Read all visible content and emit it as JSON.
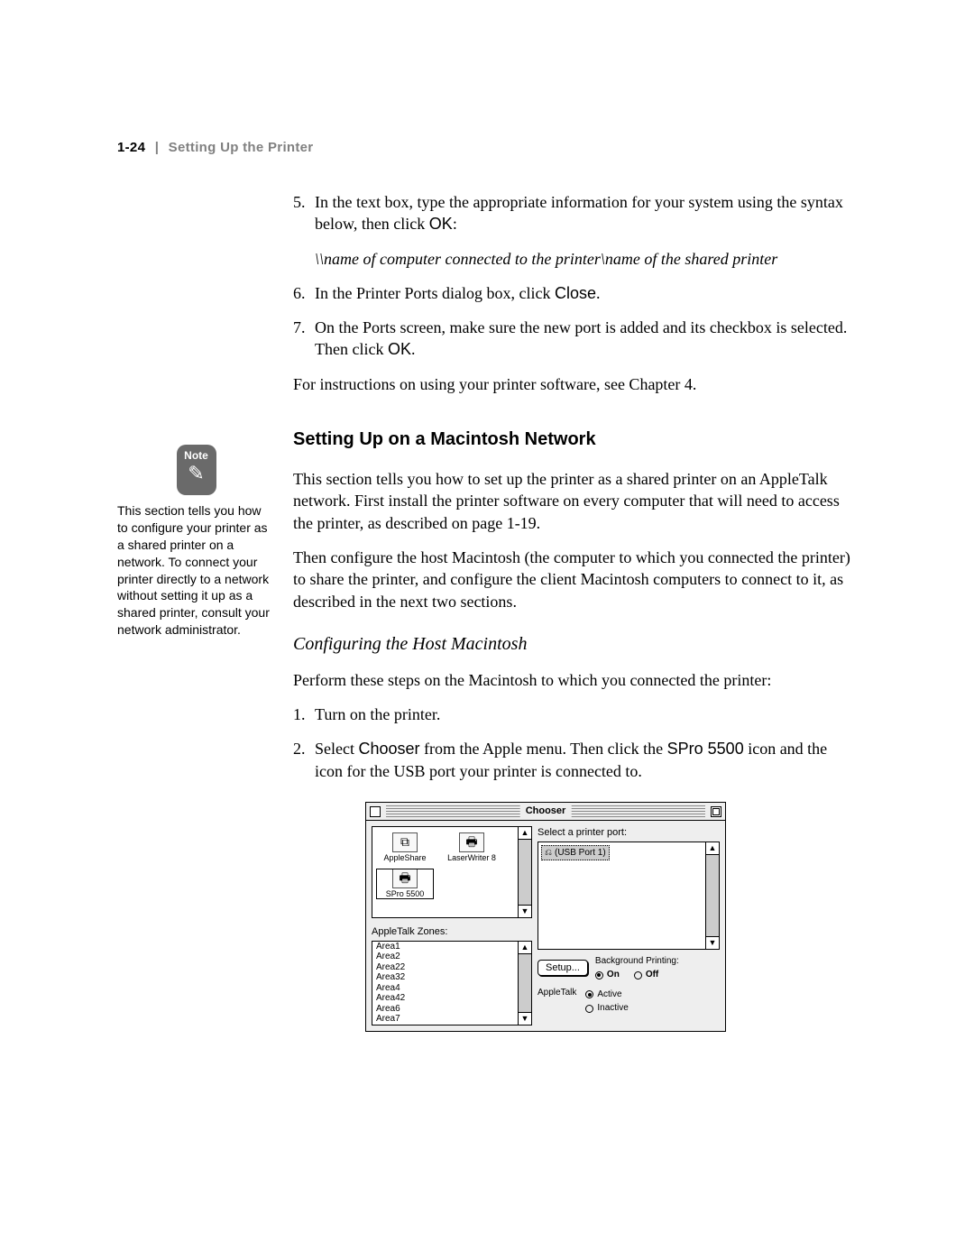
{
  "colors": {
    "page_bg": "#ffffff",
    "text": "#000000",
    "header_gray": "#808080",
    "note_badge_bg": "#6a6a6a",
    "chooser_bg": "#eeeeee",
    "scroll_track": "#cccccc"
  },
  "typography": {
    "body_family": "Times New Roman",
    "body_size_pt": 13,
    "sans_family": "Arial",
    "heading_size_pt": 15,
    "sidebar_size_pt": 10.5,
    "chooser_font": "Geneva",
    "chooser_size_pt": 8
  },
  "header": {
    "page_number": "1-24",
    "separator": "|",
    "chapter_title": "Setting Up the Printer"
  },
  "steps_a": [
    {
      "n": "5.",
      "text_before": "In the text box, type the appropriate information for your system using the syntax below, then click ",
      "sans": "OK",
      "text_after": ":"
    },
    {
      "n": "6.",
      "text_before": "In the Printer Ports dialog box, click ",
      "sans": "Close",
      "text_after": "."
    },
    {
      "n": "7.",
      "text_before": "On the Ports screen, make sure the new port is added and its checkbox is selected. Then click ",
      "sans": "OK",
      "text_after": "."
    }
  ],
  "syntax_line": "\\\\name of computer connected to the printer\\name of the shared printer",
  "para_after_steps_a": "For instructions on using your printer software, see Chapter 4.",
  "section_heading": "Setting Up on a Macintosh Network",
  "section_para_1": "This section tells you how to set up the printer as a shared printer on an AppleTalk network. First install the printer software on every computer that will need to access the printer, as described on page 1-19.",
  "section_para_2": "Then configure the host Macintosh (the computer to which you connected the printer) to share the printer, and configure the client Macintosh computers to connect to it, as described in the next two sections.",
  "subsection_heading": "Configuring the Host Macintosh",
  "subsection_para": "Perform these steps on the Macintosh to which you connected the printer:",
  "steps_b": {
    "item1": {
      "n": "1.",
      "text": "Turn on the printer."
    },
    "item2": {
      "n": "2.",
      "t1": "Select ",
      "s1": "Chooser",
      "t2": " from the Apple menu. Then click the ",
      "s2": "SPro 5500",
      "t3": " icon and the icon for the USB port your printer is connected to."
    }
  },
  "sidebar": {
    "badge_label": "Note",
    "text": "This section tells you how to configure your printer as a shared printer on a network. To connect your printer directly to a network without setting it up as a shared printer, consult your network administrator."
  },
  "chooser": {
    "title": "Chooser",
    "icons": [
      {
        "label": "AppleShare",
        "selected": false
      },
      {
        "label": "LaserWriter 8",
        "selected": false
      },
      {
        "label": "SPro 5500",
        "selected": true
      }
    ],
    "zones_label": "AppleTalk Zones:",
    "zones": [
      "Area1",
      "Area2",
      "Area22",
      "Area32",
      "Area4",
      "Area42",
      "Area6",
      "Area7"
    ],
    "port_label": "Select a printer port:",
    "ports": [
      "(USB Port 1)"
    ],
    "selected_port_index": 0,
    "setup_button": "Setup...",
    "bg_printing_label": "Background Printing:",
    "bg_on_label": "On",
    "bg_off_label": "Off",
    "bg_printing_on": true,
    "appletalk_label": "AppleTalk",
    "active_label": "Active",
    "inactive_label": "Inactive",
    "appletalk_active": true
  }
}
